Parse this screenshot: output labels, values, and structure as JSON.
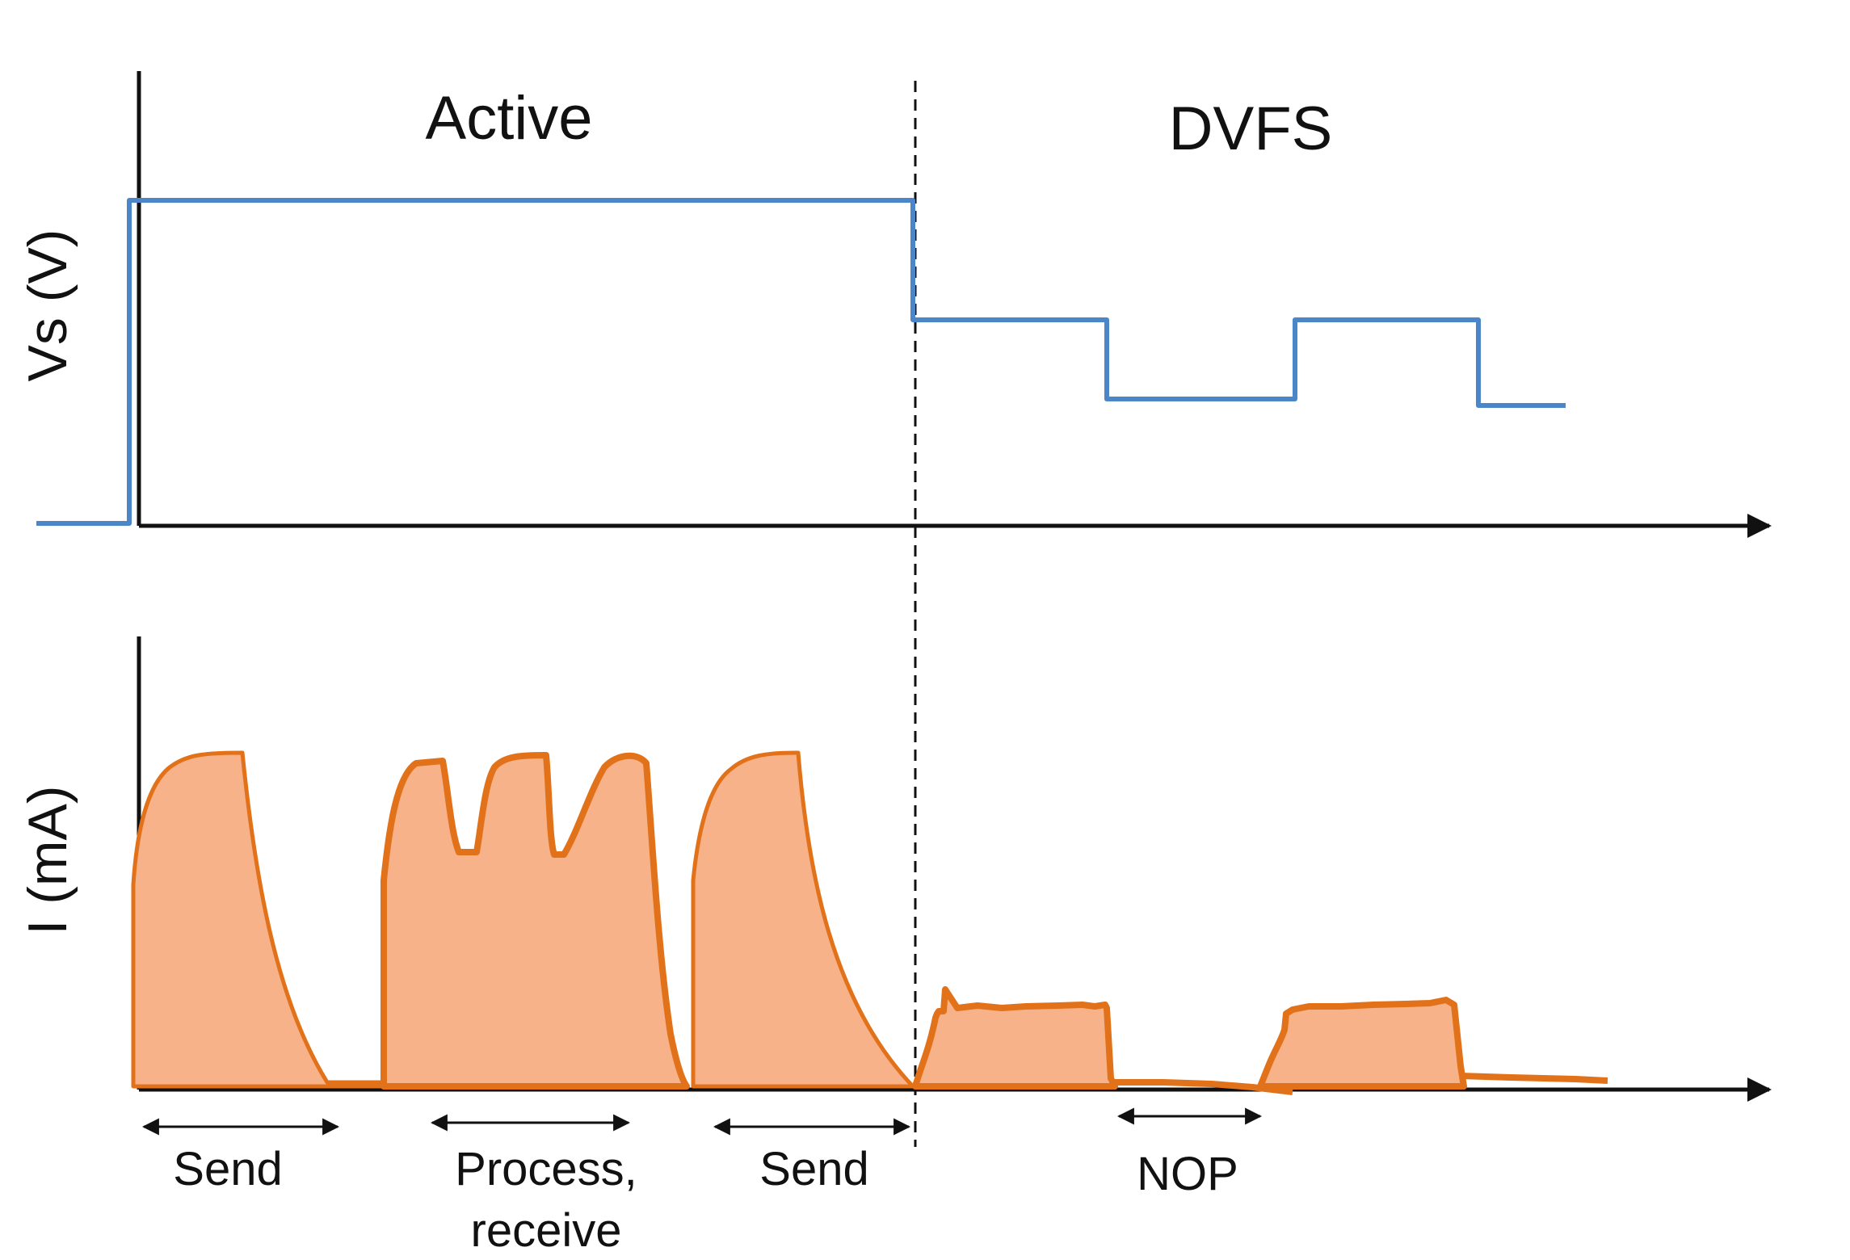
{
  "phases": {
    "active": "Active",
    "dvfs": "DVFS"
  },
  "axes": {
    "voltage_label": "Vs (V)",
    "current_label": "I (mA)"
  },
  "annotations": {
    "send_1": "Send",
    "process_line1": "Process,",
    "process_line2": "receive",
    "send_2": "Send",
    "nop": "NOP"
  },
  "colors": {
    "voltage_trace": "#4a86c8",
    "current_trace": "#e2721a",
    "current_fill": "#f8b28a",
    "axis": "#111111"
  }
}
